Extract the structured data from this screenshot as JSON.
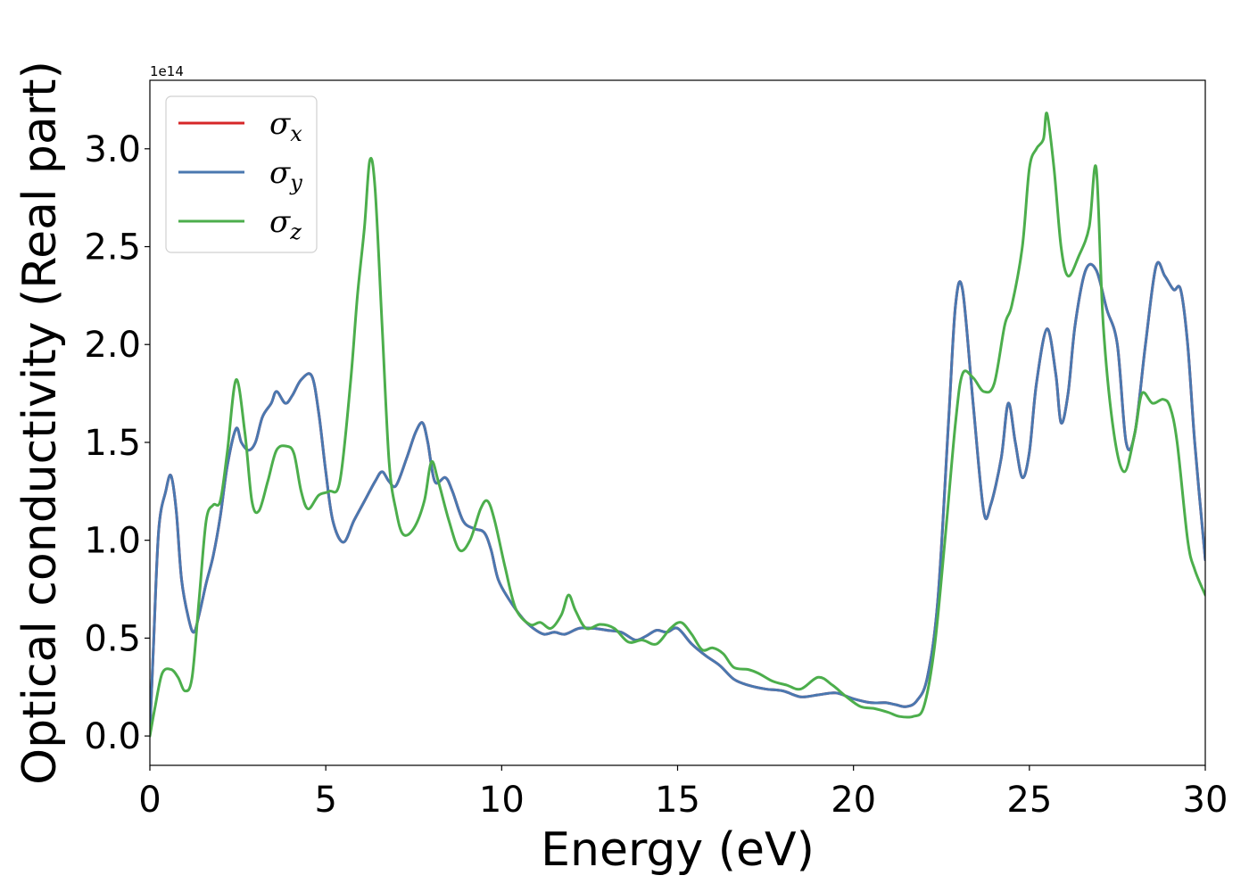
{
  "chart_data": {
    "type": "line",
    "xlabel": "Energy (eV)",
    "ylabel": "Optical conductivity (Real part)",
    "y_offset_text": "1e14",
    "xlim": [
      0,
      30
    ],
    "ylim": [
      -0.15,
      3.35
    ],
    "x_ticks": [
      0,
      5,
      10,
      15,
      20,
      25,
      30
    ],
    "x_tick_labels": [
      "0",
      "5",
      "10",
      "15",
      "20",
      "25",
      "30"
    ],
    "y_ticks": [
      0.0,
      0.5,
      1.0,
      1.5,
      2.0,
      2.5,
      3.0
    ],
    "y_tick_labels": [
      "0.0",
      "0.5",
      "1.0",
      "1.5",
      "2.0",
      "2.5",
      "3.0"
    ],
    "grid": false,
    "legend_position": "upper-left",
    "colors": {
      "sigma_x": "#d62728",
      "sigma_y": "#4a78b0",
      "sigma_z": "#4cae4c"
    },
    "series": [
      {
        "name": "σx",
        "legend_base": "σ",
        "legend_sub": "x",
        "color": "#d62728",
        "x": [
          0,
          0.1,
          0.25,
          0.45,
          0.6,
          0.75,
          0.9,
          1.1,
          1.25,
          1.4,
          1.6,
          1.8,
          2.0,
          2.2,
          2.45,
          2.6,
          2.8,
          3.0,
          3.2,
          3.45,
          3.6,
          3.85,
          4.05,
          4.3,
          4.6,
          4.8,
          5.0,
          5.2,
          5.5,
          5.8,
          6.1,
          6.4,
          6.6,
          6.8,
          7.0,
          7.3,
          7.55,
          7.75,
          7.9,
          8.1,
          8.4,
          8.6,
          8.9,
          9.2,
          9.5,
          9.7,
          9.9,
          10.2,
          10.6,
          10.9,
          11.2,
          11.5,
          11.8,
          12.2,
          12.6,
          13.0,
          13.4,
          13.8,
          14.1,
          14.4,
          14.7,
          15.0,
          15.4,
          15.8,
          16.2,
          16.6,
          17.0,
          17.5,
          18.0,
          18.5,
          19.0,
          19.5,
          20.0,
          20.5,
          20.9,
          21.2,
          21.5,
          21.8,
          22.1,
          22.4,
          22.7,
          22.9,
          23.1,
          23.4,
          23.7,
          23.9,
          24.2,
          24.4,
          24.6,
          24.8,
          25.0,
          25.2,
          25.5,
          25.75,
          25.9,
          26.1,
          26.3,
          26.6,
          26.9,
          27.2,
          27.5,
          27.75,
          28.0,
          28.3,
          28.6,
          28.85,
          29.1,
          29.3,
          29.5,
          29.7,
          30.0
        ],
        "y": [
          0.02,
          0.45,
          1.05,
          1.25,
          1.33,
          1.15,
          0.8,
          0.6,
          0.53,
          0.62,
          0.78,
          0.92,
          1.12,
          1.38,
          1.57,
          1.5,
          1.46,
          1.5,
          1.63,
          1.7,
          1.76,
          1.7,
          1.74,
          1.82,
          1.84,
          1.65,
          1.35,
          1.1,
          0.99,
          1.1,
          1.2,
          1.3,
          1.35,
          1.3,
          1.28,
          1.42,
          1.55,
          1.6,
          1.5,
          1.3,
          1.32,
          1.25,
          1.1,
          1.06,
          1.04,
          0.95,
          0.8,
          0.7,
          0.6,
          0.55,
          0.52,
          0.53,
          0.52,
          0.55,
          0.55,
          0.54,
          0.53,
          0.49,
          0.51,
          0.54,
          0.53,
          0.55,
          0.47,
          0.41,
          0.36,
          0.29,
          0.26,
          0.24,
          0.23,
          0.2,
          0.21,
          0.22,
          0.19,
          0.17,
          0.17,
          0.16,
          0.15,
          0.18,
          0.3,
          0.7,
          1.6,
          2.2,
          2.28,
          1.7,
          1.15,
          1.18,
          1.42,
          1.7,
          1.5,
          1.32,
          1.45,
          1.8,
          2.08,
          1.85,
          1.6,
          1.75,
          2.1,
          2.38,
          2.38,
          2.18,
          2.0,
          1.5,
          1.55,
          2.0,
          2.4,
          2.35,
          2.28,
          2.28,
          2.0,
          1.5,
          0.9
        ]
      },
      {
        "name": "σy",
        "legend_base": "σ",
        "legend_sub": "y",
        "color": "#4a78b0",
        "x": [
          0,
          0.1,
          0.25,
          0.45,
          0.6,
          0.75,
          0.9,
          1.1,
          1.25,
          1.4,
          1.6,
          1.8,
          2.0,
          2.2,
          2.45,
          2.6,
          2.8,
          3.0,
          3.2,
          3.45,
          3.6,
          3.85,
          4.05,
          4.3,
          4.6,
          4.8,
          5.0,
          5.2,
          5.5,
          5.8,
          6.1,
          6.4,
          6.6,
          6.8,
          7.0,
          7.3,
          7.55,
          7.75,
          7.9,
          8.1,
          8.4,
          8.6,
          8.9,
          9.2,
          9.5,
          9.7,
          9.9,
          10.2,
          10.6,
          10.9,
          11.2,
          11.5,
          11.8,
          12.2,
          12.6,
          13.0,
          13.4,
          13.8,
          14.1,
          14.4,
          14.7,
          15.0,
          15.4,
          15.8,
          16.2,
          16.6,
          17.0,
          17.5,
          18.0,
          18.5,
          19.0,
          19.5,
          20.0,
          20.5,
          20.9,
          21.2,
          21.5,
          21.8,
          22.1,
          22.4,
          22.7,
          22.9,
          23.1,
          23.4,
          23.7,
          23.9,
          24.2,
          24.4,
          24.6,
          24.8,
          25.0,
          25.2,
          25.5,
          25.75,
          25.9,
          26.1,
          26.3,
          26.6,
          26.9,
          27.2,
          27.5,
          27.75,
          28.0,
          28.3,
          28.6,
          28.85,
          29.1,
          29.3,
          29.5,
          29.7,
          30.0
        ],
        "y": [
          0.02,
          0.45,
          1.05,
          1.25,
          1.33,
          1.15,
          0.8,
          0.6,
          0.53,
          0.62,
          0.78,
          0.92,
          1.12,
          1.38,
          1.57,
          1.5,
          1.46,
          1.5,
          1.63,
          1.7,
          1.76,
          1.7,
          1.74,
          1.82,
          1.84,
          1.65,
          1.35,
          1.1,
          0.99,
          1.1,
          1.2,
          1.3,
          1.35,
          1.3,
          1.28,
          1.42,
          1.55,
          1.6,
          1.5,
          1.3,
          1.32,
          1.25,
          1.1,
          1.06,
          1.04,
          0.95,
          0.8,
          0.7,
          0.6,
          0.55,
          0.52,
          0.53,
          0.52,
          0.55,
          0.55,
          0.54,
          0.53,
          0.49,
          0.51,
          0.54,
          0.53,
          0.55,
          0.47,
          0.41,
          0.36,
          0.29,
          0.26,
          0.24,
          0.23,
          0.2,
          0.21,
          0.22,
          0.19,
          0.17,
          0.17,
          0.16,
          0.15,
          0.18,
          0.3,
          0.7,
          1.6,
          2.2,
          2.28,
          1.7,
          1.15,
          1.18,
          1.42,
          1.7,
          1.5,
          1.32,
          1.45,
          1.8,
          2.08,
          1.85,
          1.6,
          1.75,
          2.1,
          2.38,
          2.38,
          2.18,
          2.0,
          1.5,
          1.55,
          2.0,
          2.4,
          2.35,
          2.28,
          2.28,
          2.0,
          1.5,
          0.9
        ]
      },
      {
        "name": "σz",
        "legend_base": "σ",
        "legend_sub": "z",
        "color": "#4cae4c",
        "x": [
          0,
          0.15,
          0.35,
          0.6,
          0.8,
          1.0,
          1.2,
          1.4,
          1.6,
          1.8,
          2.0,
          2.2,
          2.45,
          2.7,
          2.9,
          3.1,
          3.35,
          3.6,
          3.9,
          4.1,
          4.3,
          4.5,
          4.8,
          5.1,
          5.4,
          5.7,
          5.9,
          6.1,
          6.25,
          6.4,
          6.6,
          6.8,
          7.0,
          7.2,
          7.5,
          7.8,
          8.0,
          8.2,
          8.5,
          8.8,
          9.1,
          9.4,
          9.6,
          9.8,
          10.1,
          10.4,
          10.8,
          11.1,
          11.4,
          11.7,
          11.9,
          12.1,
          12.4,
          12.8,
          13.2,
          13.6,
          14.0,
          14.4,
          14.8,
          15.1,
          15.4,
          15.7,
          16.0,
          16.3,
          16.6,
          17.0,
          17.3,
          17.7,
          18.1,
          18.5,
          19.0,
          19.4,
          19.8,
          20.2,
          20.6,
          21.0,
          21.3,
          21.7,
          22.0,
          22.3,
          22.6,
          22.9,
          23.1,
          23.4,
          23.7,
          24.0,
          24.3,
          24.5,
          24.8,
          25.0,
          25.2,
          25.4,
          25.5,
          25.7,
          25.9,
          26.1,
          26.4,
          26.7,
          26.9,
          27.1,
          27.4,
          27.7,
          28.0,
          28.2,
          28.5,
          28.8,
          29.0,
          29.2,
          29.5,
          29.7,
          30.0
        ],
        "y": [
          0.0,
          0.15,
          0.32,
          0.34,
          0.3,
          0.23,
          0.3,
          0.7,
          1.1,
          1.18,
          1.2,
          1.45,
          1.82,
          1.55,
          1.2,
          1.15,
          1.3,
          1.46,
          1.48,
          1.44,
          1.25,
          1.16,
          1.23,
          1.25,
          1.3,
          1.8,
          2.25,
          2.6,
          2.94,
          2.8,
          2.1,
          1.4,
          1.15,
          1.03,
          1.06,
          1.2,
          1.4,
          1.3,
          1.1,
          0.95,
          1.0,
          1.16,
          1.2,
          1.1,
          0.86,
          0.65,
          0.57,
          0.58,
          0.55,
          0.62,
          0.72,
          0.64,
          0.55,
          0.57,
          0.55,
          0.48,
          0.49,
          0.47,
          0.55,
          0.58,
          0.52,
          0.44,
          0.45,
          0.42,
          0.35,
          0.34,
          0.32,
          0.28,
          0.26,
          0.24,
          0.3,
          0.26,
          0.2,
          0.15,
          0.14,
          0.12,
          0.1,
          0.1,
          0.15,
          0.45,
          1.0,
          1.6,
          1.85,
          1.83,
          1.76,
          1.8,
          2.1,
          2.2,
          2.5,
          2.9,
          3.0,
          3.05,
          3.18,
          2.9,
          2.5,
          2.35,
          2.45,
          2.6,
          2.9,
          2.1,
          1.55,
          1.35,
          1.55,
          1.75,
          1.7,
          1.72,
          1.68,
          1.5,
          1.0,
          0.85,
          0.72
        ]
      }
    ]
  }
}
